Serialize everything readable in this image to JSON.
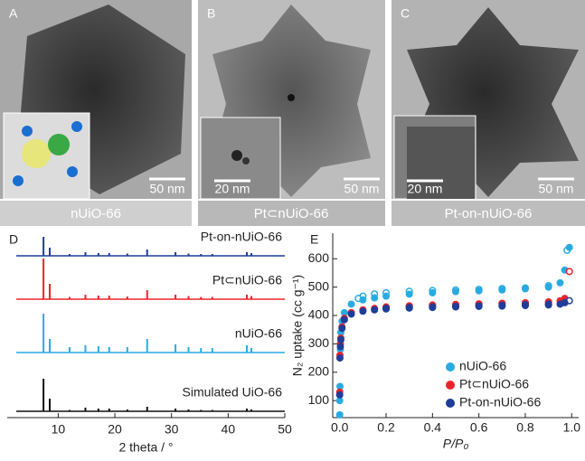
{
  "panels": [
    {
      "label": "A",
      "scale_bar": "50 nm",
      "caption": "nUiO-66"
    },
    {
      "label": "B",
      "scale_bar": "50 nm",
      "inset_scale_bar": "20 nm",
      "caption": "Pt⊂nUiO-66"
    },
    {
      "label": "C",
      "scale_bar": "50 nm",
      "inset_scale_bar": "20 nm",
      "caption": "Pt-on-nUiO-66"
    }
  ],
  "chart_data": [
    {
      "type": "stem",
      "label": "D",
      "x_label": "2 theta / °",
      "x": [
        7.4,
        8.5,
        12.0,
        14.8,
        17.1,
        19.0,
        22.2,
        25.7,
        30.7,
        33.0,
        35.2,
        37.2,
        43.3,
        44.1
      ],
      "xlim": [
        1,
        50
      ],
      "xticks": [
        10,
        20,
        30,
        40,
        50
      ],
      "ylim": [
        0,
        100
      ],
      "series": [
        {
          "name": "Pt-on-nUiO-66",
          "color": "#1f3d99",
          "values": [
            42,
            18,
            4,
            8,
            6,
            6,
            5,
            14,
            8,
            5,
            4,
            4,
            8,
            6
          ]
        },
        {
          "name": "Pt⊂nUiO-66",
          "color": "#e8262b",
          "values": [
            90,
            34,
            5,
            10,
            8,
            8,
            6,
            20,
            10,
            7,
            5,
            5,
            10,
            7
          ]
        },
        {
          "name": "nUiO-66",
          "color": "#29abe2",
          "values": [
            86,
            30,
            12,
            16,
            14,
            12,
            12,
            30,
            18,
            12,
            10,
            10,
            16,
            10
          ]
        },
        {
          "name": "Simulated UiO-66",
          "color": "#111111",
          "values": [
            72,
            28,
            3,
            8,
            6,
            6,
            4,
            10,
            6,
            4,
            3,
            3,
            6,
            4
          ]
        }
      ]
    },
    {
      "type": "scatter",
      "label": "E",
      "x_label": "P/P₀",
      "y_label": "N₂ uptake (cc g⁻¹)",
      "xlim": [
        -0.03,
        1.03
      ],
      "ylim": [
        40,
        690
      ],
      "xticks": [
        {
          "value": 0,
          "label": "0.0"
        },
        0.2,
        0.4,
        0.6,
        0.8,
        {
          "value": 1,
          "label": "1.0"
        }
      ],
      "yticks": [
        100,
        200,
        300,
        400,
        500,
        600
      ],
      "series": [
        {
          "name": "nUiO-66",
          "color": "#29abe2",
          "x": [
            0,
            0,
            0.001,
            0.003,
            0.005,
            0.01,
            0.02,
            0.05,
            0.1,
            0.15,
            0.2,
            0.3,
            0.4,
            0.5,
            0.6,
            0.7,
            0.8,
            0.9,
            0.95,
            0.97,
            0.99
          ],
          "values": [
            50,
            100,
            150,
            280,
            340,
            380,
            410,
            440,
            455,
            462,
            468,
            475,
            480,
            484,
            487,
            490,
            494,
            500,
            515,
            560,
            640
          ],
          "desorption_x": [
            0.98,
            0.9,
            0.8,
            0.7,
            0.6,
            0.5,
            0.4,
            0.3,
            0.2,
            0.15,
            0.1,
            0.08
          ],
          "desorption_values": [
            630,
            505,
            497,
            495,
            492,
            490,
            488,
            485,
            480,
            476,
            468,
            460
          ]
        },
        {
          "name": "Pt⊂nUiO-66",
          "color": "#e8262b",
          "x": [
            0,
            0.001,
            0.003,
            0.005,
            0.01,
            0.02,
            0.05,
            0.1,
            0.15,
            0.2,
            0.3,
            0.4,
            0.5,
            0.6,
            0.7,
            0.8,
            0.9,
            0.95,
            0.97
          ],
          "values": [
            130,
            260,
            300,
            320,
            360,
            390,
            410,
            420,
            425,
            428,
            432,
            435,
            437,
            440,
            442,
            444,
            447,
            452,
            460
          ],
          "desorption_x": [
            0.99,
            0.9,
            0.8,
            0.7,
            0.6,
            0.5,
            0.4,
            0.3,
            0.2
          ],
          "desorption_values": [
            555,
            448,
            445,
            443,
            441,
            439,
            437,
            434,
            430
          ]
        },
        {
          "name": "Pt-on-nUiO-66",
          "color": "#1f3d99",
          "x": [
            0,
            0.001,
            0.003,
            0.005,
            0.01,
            0.02,
            0.05,
            0.1,
            0.15,
            0.2,
            0.3,
            0.4,
            0.5,
            0.6,
            0.7,
            0.8,
            0.9,
            0.95,
            0.97
          ],
          "values": [
            120,
            250,
            290,
            315,
            355,
            385,
            405,
            415,
            420,
            423,
            426,
            428,
            430,
            432,
            433,
            435,
            437,
            440,
            445
          ],
          "desorption_x": [
            0.99,
            0.9,
            0.8,
            0.7,
            0.6,
            0.5,
            0.4,
            0.3,
            0.2
          ],
          "desorption_values": [
            452,
            440,
            438,
            436,
            434,
            432,
            430,
            428,
            425
          ]
        }
      ]
    }
  ]
}
